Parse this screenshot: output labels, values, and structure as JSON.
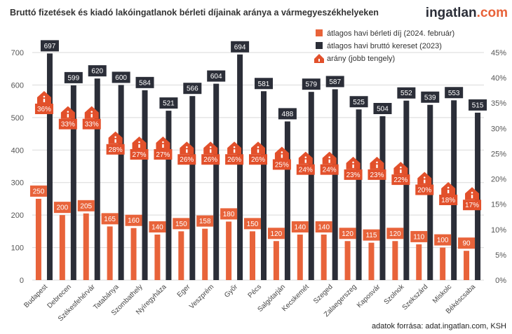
{
  "header": {
    "title": "Bruttó fizetések és kiadó lakóingatlanok bérleti díjainak aránya a vármegyeszékhelyeken",
    "brand_prefix": "ingatlan",
    "brand_suffix": ".com"
  },
  "footer": {
    "source": "adatok forrása: adat.ingatlan.com, KSH"
  },
  "colors": {
    "rent": "#e8633a",
    "salary": "#2b2e38",
    "house": "#e2502b",
    "grid": "#d9d9d9",
    "brand_dark": "#2b2e38",
    "brand_accent": "#e8633a"
  },
  "chart_data": {
    "type": "bar",
    "categories": [
      "Budapest",
      "Debrecen",
      "Székesfehérvár",
      "Tatabánya",
      "Szombathely",
      "Nyíregyháza",
      "Eger",
      "Veszprém",
      "Győr",
      "Pécs",
      "Salgótarján",
      "Kecskemét",
      "Szeged",
      "Zalaegerszeg",
      "Kaposvár",
      "Szolnok",
      "Szekszárd",
      "Miskolc",
      "Békéscsaba"
    ],
    "series": [
      {
        "name": "átlagos havi bérleti díj (2024. február)",
        "values": [
          250,
          200,
          205,
          165,
          160,
          140,
          150,
          158,
          180,
          150,
          120,
          140,
          140,
          120,
          115,
          120,
          110,
          100,
          90
        ]
      },
      {
        "name": "átlagos havi bruttó kereset (2023)",
        "values": [
          697,
          599,
          620,
          600,
          584,
          521,
          566,
          604,
          694,
          581,
          488,
          579,
          587,
          525,
          504,
          552,
          539,
          553,
          515
        ]
      },
      {
        "name": "arány (jobb tengely)",
        "values": [
          36,
          33,
          33,
          28,
          27,
          27,
          26,
          26,
          26,
          26,
          25,
          24,
          24,
          23,
          23,
          22,
          20,
          18,
          17
        ],
        "axis": "right"
      }
    ],
    "ylim": [
      0,
      700
    ],
    "yticks": [
      "0",
      "100",
      "200",
      "300",
      "400",
      "500",
      "600",
      "700"
    ],
    "y2lim": [
      0,
      45
    ],
    "y2ticks": [
      "0%",
      "5%",
      "10%",
      "15%",
      "20%",
      "25%",
      "30%",
      "35%",
      "40%",
      "45%"
    ],
    "legend": "top-right",
    "grid": true
  }
}
